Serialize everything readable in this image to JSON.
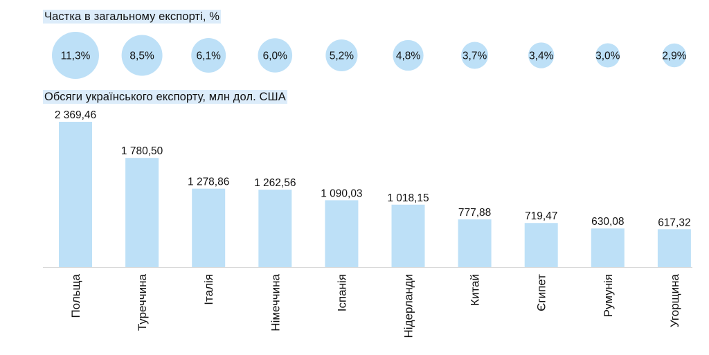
{
  "headings": {
    "share": "Частка в загальному експорті, %",
    "volume": "Обсяги українського експорту, млн дол. США"
  },
  "colors": {
    "bar": "#bde0f7",
    "bubble": "#bde0f7",
    "heading_highlight": "#dcecfa",
    "baseline": "#d9d9d9"
  },
  "chart_data": [
    {
      "type": "bubble",
      "title": "Частка в загальному експорті, %",
      "categories": [
        "Польща",
        "Туреччина",
        "Італія",
        "Німеччина",
        "Іспанія",
        "Нідерланди",
        "Китай",
        "Єгипет",
        "Румунія",
        "Угорщина"
      ],
      "values": [
        11.3,
        8.5,
        6.1,
        6.0,
        5.2,
        4.8,
        3.7,
        3.4,
        3.0,
        2.9
      ],
      "labels": [
        "11,3%",
        "8,5%",
        "6,1%",
        "6,0%",
        "5,2%",
        "4,8%",
        "3,7%",
        "3,4%",
        "3,0%",
        "2,9%"
      ]
    },
    {
      "type": "bar",
      "title": "Обсяги українського експорту, млн дол. США",
      "categories": [
        "Польща",
        "Туреччина",
        "Італія",
        "Німеччина",
        "Іспанія",
        "Нідерланди",
        "Китай",
        "Єгипет",
        "Румунія",
        "Угорщина"
      ],
      "values": [
        2369.46,
        1780.5,
        1278.86,
        1262.56,
        1090.03,
        1018.15,
        777.88,
        719.47,
        630.08,
        617.32
      ],
      "labels": [
        "2 369,46",
        "1 780,50",
        "1 278,86",
        "1 262,56",
        "1 090,03",
        "1 018,15",
        "777,88",
        "719,47",
        "630,08",
        "617,32"
      ],
      "ylim": [
        0,
        2369.46
      ],
      "grid": false
    }
  ]
}
